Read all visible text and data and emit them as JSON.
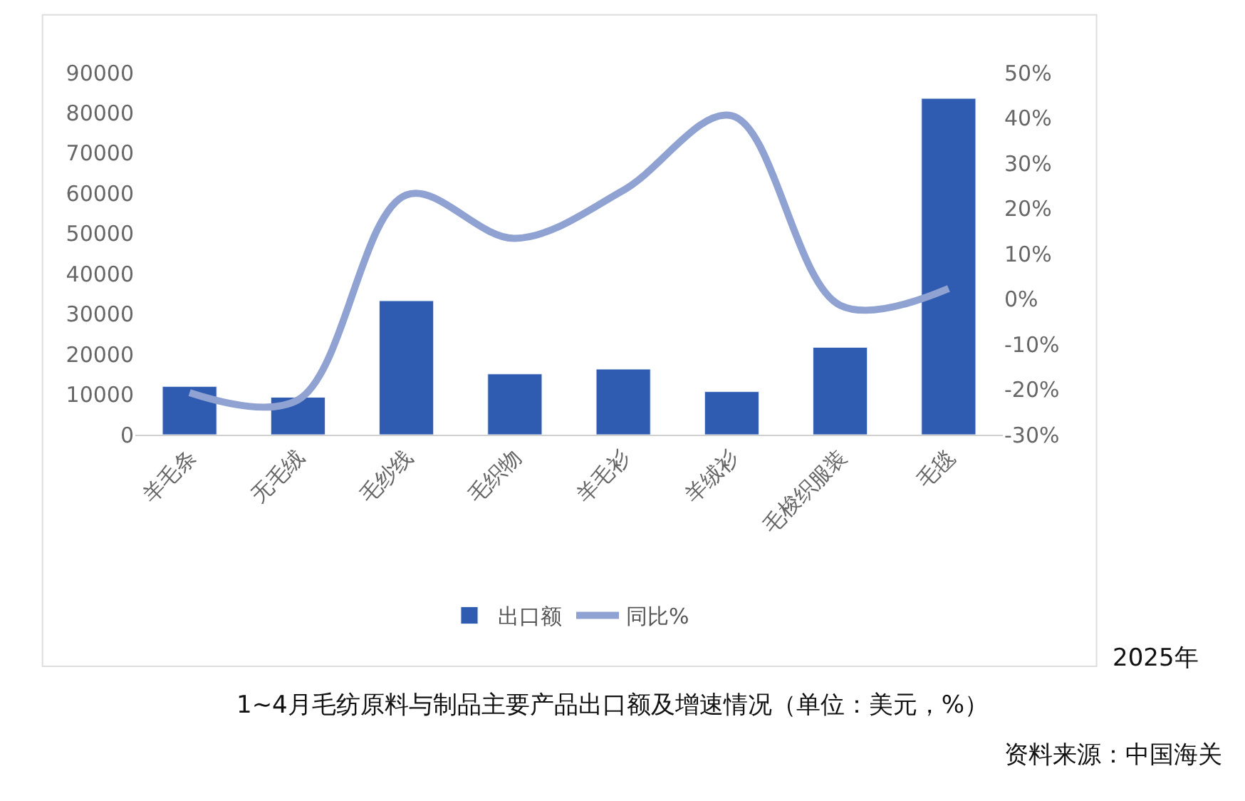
{
  "chart_data": {
    "type": "bar",
    "categories": [
      "羊毛条",
      "无毛绒",
      "毛纱线",
      "毛织物",
      "羊毛衫",
      "羊绒衫",
      "毛梭织服装",
      "毛毯"
    ],
    "series": [
      {
        "name": "出口额",
        "color": "#2f5bb0",
        "values": [
          12000,
          9300,
          33300,
          15100,
          16300,
          10700,
          21700,
          83600
        ]
      },
      {
        "name": "同比%",
        "type": "line",
        "axis": "y2",
        "color": "#8fa2d2",
        "values": [
          -20.7,
          -22.3,
          23,
          13.4,
          24,
          40.5,
          -1.4,
          2.3
        ]
      }
    ],
    "ylim": [
      0,
      90000
    ],
    "yticks": [
      0,
      10000,
      20000,
      30000,
      40000,
      50000,
      60000,
      70000,
      80000,
      90000
    ],
    "y2lim": [
      -30,
      50
    ],
    "y2ticks": [
      {
        "value": -30,
        "label": "-30%"
      },
      {
        "value": -20,
        "label": "-20%"
      },
      {
        "value": -10,
        "label": "-10%"
      },
      {
        "value": 0,
        "label": "0%"
      },
      {
        "value": 10,
        "label": "10%"
      },
      {
        "value": 20,
        "label": "20%"
      },
      {
        "value": 30,
        "label": "30%"
      },
      {
        "value": 40,
        "label": "40%"
      },
      {
        "value": 50,
        "label": "50%"
      }
    ],
    "legend": "bottom",
    "marker": "none",
    "line_style": "solid",
    "annotations": [
      "2025年",
      "1~4月毛纺原料与制品主要产品出口额及增速情况（单位：美元，%）",
      "资料来源：中国海关"
    ]
  }
}
